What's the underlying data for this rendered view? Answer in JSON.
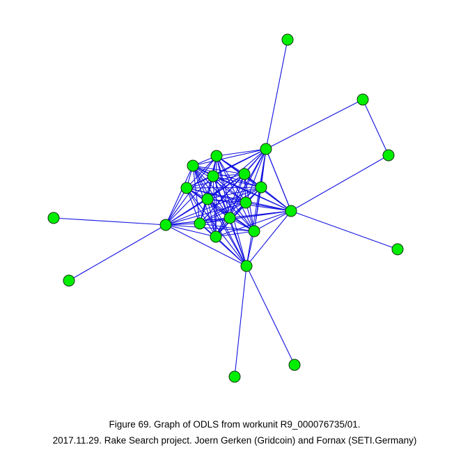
{
  "caption": {
    "line1": "Figure 69. Graph of ODLS from workunit R9_000076735/01.",
    "line2": "2017.11.29. Rake Search project. Joern Gerken (Gridcoin) and Fornax (SETI.Germany)"
  }
}
